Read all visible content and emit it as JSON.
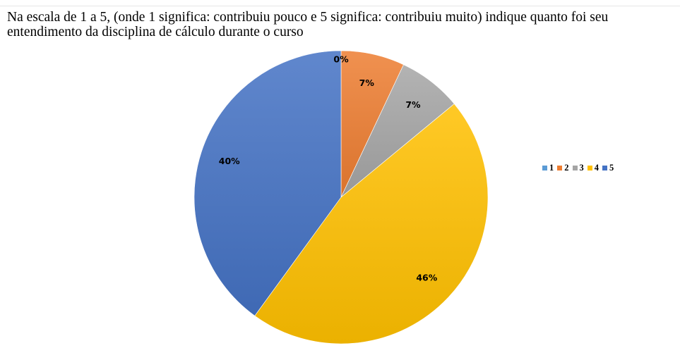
{
  "title": "Na escala de 1 a 5, (onde 1 significa: contribuiu pouco e 5 significa: contribuiu muito) indique quanto foi seu entendimento da disciplina de cálculo durante o curso",
  "chart_data": {
    "type": "pie",
    "title": "Na escala de 1 a 5, (onde 1 significa: contribuiu pouco e 5 significa: contribuiu muito) indique quanto foi seu entendimento da disciplina de cálculo durante o curso",
    "categories": [
      "1",
      "2",
      "3",
      "4",
      "5"
    ],
    "values": [
      0,
      7,
      7,
      46,
      40
    ],
    "labels": [
      "0%",
      "7%",
      "7%",
      "46%",
      "40%"
    ],
    "colors": [
      "#5B9BD5",
      "#ED7D31",
      "#A5A5A5",
      "#FFC000",
      "#4472C4"
    ],
    "legend_position": "right"
  }
}
